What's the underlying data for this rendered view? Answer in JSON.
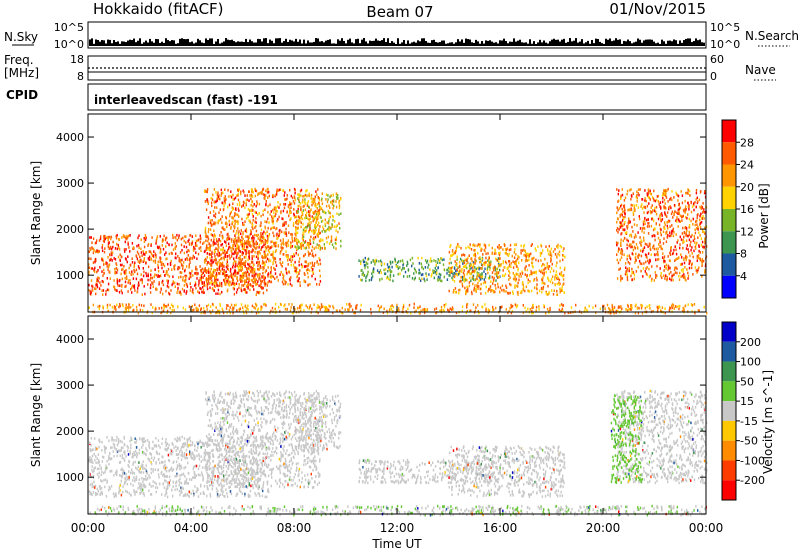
{
  "header": {
    "radar": "Hokkaido (fitACF)",
    "beam": "Beam 07",
    "date": "01/Nov/2015"
  },
  "nsky_panel": {
    "left_label": "N.Sky",
    "right_label": "N.Search",
    "left_ticks": [
      "10^5",
      "10^0"
    ],
    "right_ticks": [
      "10^5",
      "10^0"
    ]
  },
  "freq_panel": {
    "left_label_1": "Freq.",
    "left_label_2": "[MHz]",
    "left_ticks": [
      "18",
      "8"
    ],
    "right_ticks": [
      "60",
      "0"
    ],
    "right_label": "Nave",
    "cpid_label": "CPID"
  },
  "cpid_text": "interleavedscan (fast) -191",
  "chart_data": [
    {
      "type": "heatmap",
      "name": "Power",
      "ylabel": "Slant Range [km]",
      "xlabel": "Time UT",
      "xlim": [
        0,
        24
      ],
      "ylim": [
        200,
        4500
      ],
      "yticks": [
        1000,
        2000,
        3000,
        4000
      ],
      "colorbar": {
        "label": "Power [dB]",
        "ticks": [
          "28",
          "24",
          "20",
          "16",
          "12",
          "8",
          "4"
        ],
        "colors": [
          "#ff0000",
          "#ff5a00",
          "#ff9600",
          "#ffd200",
          "#78b428",
          "#3c9650",
          "#1e5aa0",
          "#0000ff"
        ],
        "range": [
          0,
          32
        ]
      },
      "regions": [
        {
          "t0": 0.0,
          "t1": 7.0,
          "r0": 600,
          "r1": 1900,
          "v": 26
        },
        {
          "t0": 4.5,
          "t1": 9.0,
          "r0": 800,
          "r1": 2900,
          "v": 24
        },
        {
          "t0": 8.0,
          "t1": 9.8,
          "r0": 1600,
          "r1": 2800,
          "v": 19
        },
        {
          "t0": 10.5,
          "t1": 16.0,
          "r0": 900,
          "r1": 1400,
          "v": 12
        },
        {
          "t0": 14.0,
          "t1": 18.5,
          "r0": 600,
          "r1": 1700,
          "v": 22
        },
        {
          "t0": 20.5,
          "t1": 24.0,
          "r0": 900,
          "r1": 2900,
          "v": 25
        },
        {
          "t0": 0.0,
          "t1": 24.0,
          "r0": 200,
          "r1": 400,
          "v": 22
        }
      ]
    },
    {
      "type": "heatmap",
      "name": "Velocity",
      "ylabel": "Slant Range [km]",
      "xlabel": "Time UT",
      "xlim": [
        0,
        24
      ],
      "ylim": [
        200,
        4500
      ],
      "yticks": [
        1000,
        2000,
        3000,
        4000
      ],
      "colorbar": {
        "label": "Velocity [m s^-1]",
        "ticks": [
          "200",
          "100",
          "50",
          "15",
          "-15",
          "-50",
          "-100",
          "-200"
        ],
        "colors": [
          "#0000c8",
          "#1e5aa0",
          "#3c9650",
          "#64c832",
          "#c8c8c8",
          "#ffc800",
          "#ff8c00",
          "#ff3c00",
          "#ff0000"
        ],
        "range": [
          -250,
          250
        ]
      },
      "regions": [
        {
          "t0": 0.0,
          "t1": 7.0,
          "r0": 600,
          "r1": 1900,
          "v": 0
        },
        {
          "t0": 4.5,
          "t1": 9.0,
          "r0": 800,
          "r1": 2900,
          "v": 0
        },
        {
          "t0": 8.0,
          "t1": 9.8,
          "r0": 1600,
          "r1": 2800,
          "v": 0
        },
        {
          "t0": 10.5,
          "t1": 16.0,
          "r0": 900,
          "r1": 1400,
          "v": 0
        },
        {
          "t0": 14.0,
          "t1": 18.5,
          "r0": 600,
          "r1": 1700,
          "v": 0
        },
        {
          "t0": 20.5,
          "t1": 24.0,
          "r0": 900,
          "r1": 2900,
          "v": 0
        },
        {
          "t0": 20.3,
          "t1": 21.5,
          "r0": 900,
          "r1": 2800,
          "v": 60
        },
        {
          "t0": 0.0,
          "t1": 24.0,
          "r0": 200,
          "r1": 400,
          "v": 20
        }
      ]
    }
  ],
  "time_axis": {
    "ticks": [
      "00:00",
      "04:00",
      "08:00",
      "12:00",
      "16:00",
      "20:00",
      "00:00"
    ],
    "label": "Time UT"
  }
}
